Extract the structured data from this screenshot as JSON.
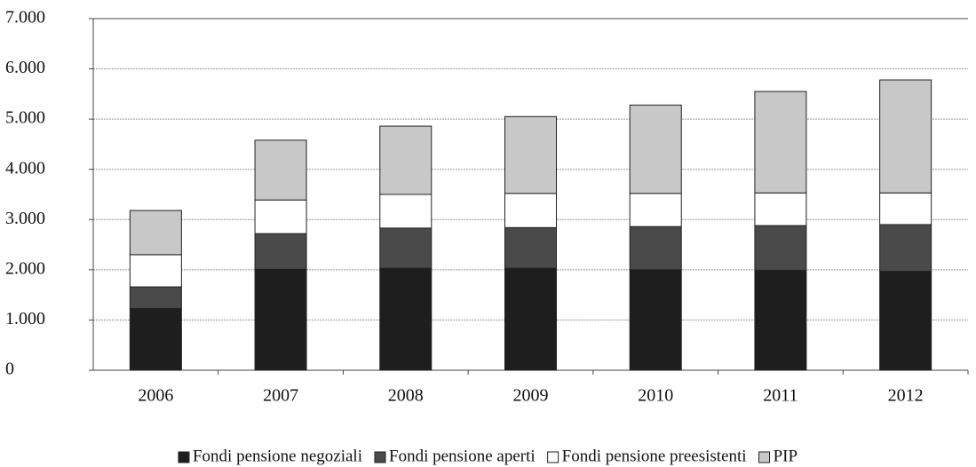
{
  "chart_data": {
    "type": "stacked_bar",
    "categories": [
      "2006",
      "2007",
      "2008",
      "2009",
      "2010",
      "2011",
      "2012"
    ],
    "series": [
      {
        "name": "Fondi pensione negoziali",
        "color": "#1e1e1e",
        "values": [
          1230,
          2010,
          2030,
          2030,
          2000,
          1990,
          1970
        ]
      },
      {
        "name": "Fondi pensione aperti",
        "color": "#4a4a4a",
        "values": [
          430,
          710,
          800,
          810,
          860,
          890,
          930
        ]
      },
      {
        "name": "Fondi pensione preesistenti",
        "color": "#ffffff",
        "values": [
          640,
          670,
          670,
          680,
          660,
          650,
          630
        ]
      },
      {
        "name": "PIP",
        "color": "#c8c8c8",
        "values": [
          880,
          1190,
          1360,
          1530,
          1760,
          2020,
          2250
        ]
      }
    ],
    "ylim": [
      0,
      7000
    ],
    "yticks": [
      0,
      {
        "value": 1000,
        "label": "1.000"
      },
      {
        "value": 2000,
        "label": "2.000"
      },
      {
        "value": 3000,
        "label": "3.000"
      },
      {
        "value": 4000,
        "label": "4.000"
      },
      {
        "value": 5000,
        "label": "5.000"
      },
      {
        "value": 6000,
        "label": "6.000"
      },
      {
        "value": 7000,
        "label": "7.000"
      }
    ],
    "grid": true,
    "legend": "bottom"
  }
}
